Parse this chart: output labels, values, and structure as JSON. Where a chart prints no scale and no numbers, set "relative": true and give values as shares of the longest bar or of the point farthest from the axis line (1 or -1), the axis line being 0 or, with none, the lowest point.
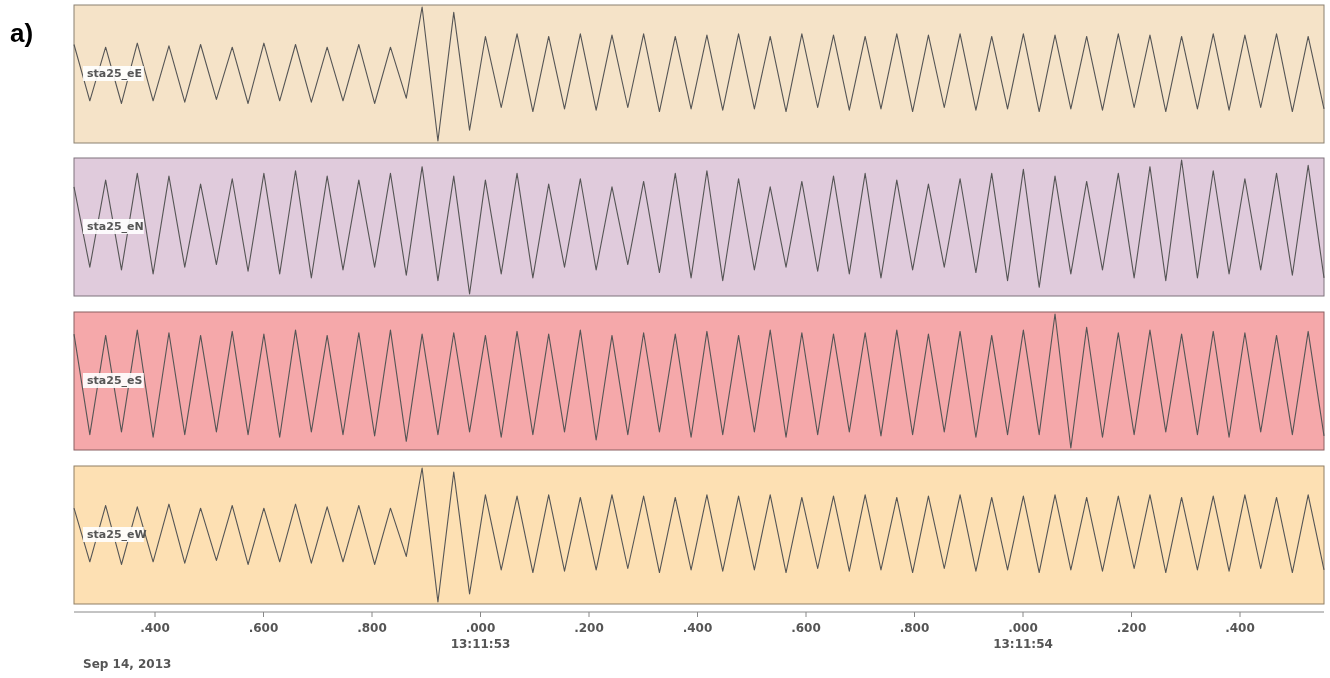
{
  "chart_data": [
    {
      "type": "line",
      "title": "a)",
      "relative": true,
      "bands": [
        {
          "axis": "y",
          "from": 0,
          "to": 1,
          "color": "#f5e3c8"
        }
      ],
      "categories": [
        null,
        null,
        null,
        null,
        null,
        null,
        null,
        null,
        null,
        null,
        null,
        null,
        null,
        null,
        null,
        null,
        null,
        null,
        null,
        null,
        null,
        null,
        null,
        null,
        null,
        null,
        null,
        null,
        null,
        null,
        null,
        null,
        null,
        null,
        null,
        null,
        null,
        null,
        null,
        null,
        null,
        null,
        null,
        null,
        null,
        null,
        null,
        null,
        null,
        null,
        null,
        null,
        null,
        null,
        null,
        null,
        null,
        null,
        null,
        null,
        null,
        null,
        null,
        null,
        null,
        null,
        null,
        null,
        null,
        null,
        null,
        null,
        null,
        null,
        null,
        null,
        null,
        null,
        null,
        null
      ],
      "series": [
        {
          "name": "sta25_eE",
          "color": "#555555",
          "values": [
            0.72,
            0.3,
            0.7,
            0.28,
            0.73,
            0.3,
            0.71,
            0.29,
            0.72,
            0.31,
            0.7,
            0.28,
            0.73,
            0.3,
            0.72,
            0.29,
            0.7,
            0.3,
            0.72,
            0.28,
            0.7,
            0.32,
            1.0,
            0.0,
            0.96,
            0.08,
            0.78,
            0.25,
            0.8,
            0.22,
            0.78,
            0.24,
            0.8,
            0.23,
            0.79,
            0.25,
            0.8,
            0.22,
            0.78,
            0.24,
            0.79,
            0.23,
            0.8,
            0.24,
            0.78,
            0.22,
            0.8,
            0.25,
            0.79,
            0.23,
            0.78,
            0.24,
            0.8,
            0.22,
            0.79,
            0.25,
            0.8,
            0.23,
            0.78,
            0.24,
            0.8,
            0.22,
            0.79,
            0.24,
            0.78,
            0.23,
            0.8,
            0.25,
            0.79,
            0.22,
            0.78,
            0.24,
            0.8,
            0.23,
            0.79,
            0.25,
            0.8,
            0.22,
            0.78,
            0.24
          ]
        }
      ]
    },
    {
      "type": "line",
      "relative": true,
      "bands": [
        {
          "axis": "y",
          "from": 0,
          "to": 1,
          "color": "#e0cbdc"
        }
      ],
      "categories": [
        null,
        null,
        null,
        null,
        null,
        null,
        null,
        null,
        null,
        null,
        null,
        null,
        null,
        null,
        null,
        null,
        null,
        null,
        null,
        null,
        null,
        null,
        null,
        null,
        null,
        null,
        null,
        null,
        null,
        null,
        null,
        null,
        null,
        null,
        null,
        null,
        null,
        null,
        null,
        null,
        null,
        null,
        null,
        null,
        null,
        null,
        null,
        null,
        null,
        null,
        null,
        null,
        null,
        null,
        null,
        null,
        null,
        null,
        null,
        null,
        null,
        null,
        null,
        null,
        null,
        null,
        null,
        null,
        null,
        null,
        null,
        null,
        null,
        null,
        null,
        null,
        null,
        null,
        null,
        null
      ],
      "series": [
        {
          "name": "sta25_eN",
          "color": "#555555",
          "values": [
            0.8,
            0.2,
            0.85,
            0.18,
            0.9,
            0.15,
            0.88,
            0.2,
            0.82,
            0.22,
            0.86,
            0.17,
            0.9,
            0.15,
            0.92,
            0.12,
            0.88,
            0.18,
            0.85,
            0.2,
            0.9,
            0.14,
            0.95,
            0.1,
            0.88,
            0.0,
            0.85,
            0.15,
            0.9,
            0.12,
            0.82,
            0.2,
            0.86,
            0.18,
            0.8,
            0.22,
            0.84,
            0.16,
            0.9,
            0.12,
            0.92,
            0.1,
            0.86,
            0.18,
            0.8,
            0.2,
            0.84,
            0.17,
            0.88,
            0.15,
            0.9,
            0.12,
            0.85,
            0.18,
            0.82,
            0.2,
            0.86,
            0.16,
            0.9,
            0.1,
            0.93,
            0.05,
            0.88,
            0.15,
            0.84,
            0.18,
            0.9,
            0.12,
            0.95,
            0.1,
            1.0,
            0.12,
            0.92,
            0.15,
            0.86,
            0.18,
            0.9,
            0.14,
            0.96,
            0.12
          ]
        }
      ]
    },
    {
      "type": "line",
      "relative": true,
      "bands": [
        {
          "axis": "y",
          "from": 0,
          "to": 1,
          "color": "#f5a8aa"
        }
      ],
      "categories": [
        null,
        null,
        null,
        null,
        null,
        null,
        null,
        null,
        null,
        null,
        null,
        null,
        null,
        null,
        null,
        null,
        null,
        null,
        null,
        null,
        null,
        null,
        null,
        null,
        null,
        null,
        null,
        null,
        null,
        null,
        null,
        null,
        null,
        null,
        null,
        null,
        null,
        null,
        null,
        null,
        null,
        null,
        null,
        null,
        null,
        null,
        null,
        null,
        null,
        null,
        null,
        null,
        null,
        null,
        null,
        null,
        null,
        null,
        null,
        null,
        null,
        null,
        null,
        null,
        null,
        null,
        null,
        null,
        null,
        null,
        null,
        null,
        null,
        null,
        null,
        null,
        null,
        null,
        null,
        null
      ],
      "series": [
        {
          "name": "sta25_eS",
          "color": "#555555",
          "values": [
            0.85,
            0.1,
            0.84,
            0.12,
            0.88,
            0.08,
            0.86,
            0.1,
            0.84,
            0.12,
            0.87,
            0.1,
            0.85,
            0.08,
            0.88,
            0.12,
            0.84,
            0.1,
            0.86,
            0.09,
            0.88,
            0.05,
            0.85,
            0.1,
            0.86,
            0.12,
            0.84,
            0.08,
            0.87,
            0.1,
            0.85,
            0.12,
            0.88,
            0.06,
            0.84,
            0.1,
            0.86,
            0.12,
            0.85,
            0.08,
            0.87,
            0.1,
            0.84,
            0.12,
            0.88,
            0.08,
            0.86,
            0.1,
            0.85,
            0.12,
            0.86,
            0.09,
            0.88,
            0.1,
            0.85,
            0.12,
            0.87,
            0.08,
            0.84,
            0.1,
            0.88,
            0.1,
            1.0,
            0.0,
            0.9,
            0.08,
            0.86,
            0.1,
            0.88,
            0.12,
            0.85,
            0.1,
            0.87,
            0.08,
            0.86,
            0.12,
            0.84,
            0.1,
            0.87,
            0.09
          ]
        }
      ]
    },
    {
      "type": "line",
      "relative": true,
      "bands": [
        {
          "axis": "y",
          "from": 0,
          "to": 1,
          "color": "#fde0b3"
        }
      ],
      "categories": [
        null,
        null,
        null,
        null,
        null,
        null,
        null,
        null,
        null,
        null,
        null,
        null,
        null,
        null,
        null,
        null,
        null,
        null,
        null,
        null,
        null,
        null,
        null,
        null,
        null,
        null,
        null,
        null,
        null,
        null,
        null,
        null,
        null,
        null,
        null,
        null,
        null,
        null,
        null,
        null,
        null,
        null,
        null,
        null,
        null,
        null,
        null,
        null,
        null,
        null,
        null,
        null,
        null,
        null,
        null,
        null,
        null,
        null,
        null,
        null,
        null,
        null,
        null,
        null,
        null,
        null,
        null,
        null,
        null,
        null,
        null,
        null,
        null,
        null,
        null,
        null,
        null,
        null,
        null,
        null
      ],
      "annotations": [
        ".400",
        ".600",
        ".800",
        ".000\n13:11:53",
        ".200",
        ".400",
        ".600",
        ".800",
        ".000\n13:11:54",
        ".200",
        ".400",
        "Sep 14, 2013"
      ],
      "series": [
        {
          "name": "sta25_eW",
          "color": "#555555",
          "values": [
            0.7,
            0.3,
            0.72,
            0.28,
            0.71,
            0.3,
            0.73,
            0.29,
            0.7,
            0.31,
            0.72,
            0.28,
            0.7,
            0.3,
            0.73,
            0.29,
            0.71,
            0.3,
            0.72,
            0.28,
            0.7,
            0.34,
            1.0,
            0.0,
            0.97,
            0.06,
            0.8,
            0.24,
            0.79,
            0.22,
            0.8,
            0.23,
            0.78,
            0.24,
            0.8,
            0.25,
            0.79,
            0.22,
            0.78,
            0.24,
            0.8,
            0.23,
            0.79,
            0.24,
            0.8,
            0.22,
            0.78,
            0.25,
            0.79,
            0.23,
            0.8,
            0.24,
            0.78,
            0.22,
            0.79,
            0.25,
            0.8,
            0.23,
            0.78,
            0.24,
            0.79,
            0.22,
            0.8,
            0.24,
            0.78,
            0.23,
            0.79,
            0.25,
            0.8,
            0.22,
            0.78,
            0.24,
            0.79,
            0.23,
            0.8,
            0.25,
            0.78,
            0.22,
            0.8,
            0.24
          ]
        }
      ]
    }
  ]
}
